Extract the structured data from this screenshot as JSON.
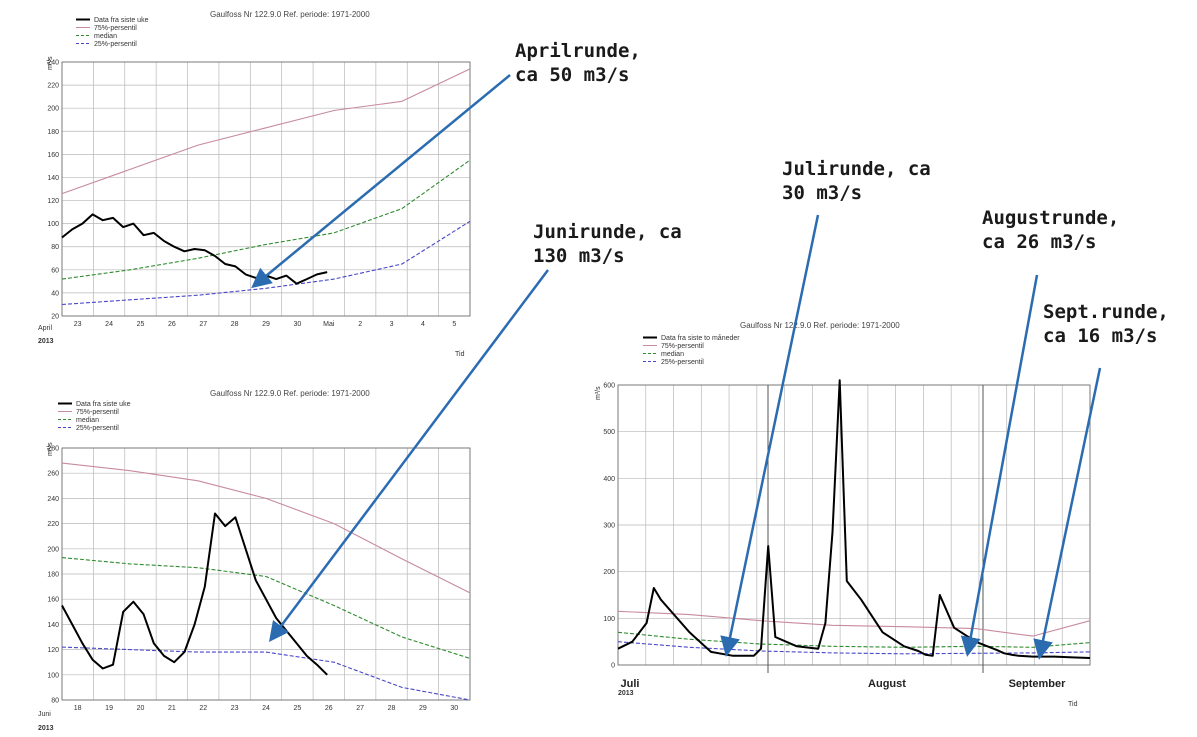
{
  "chart_data": [
    {
      "type": "line",
      "title": "Gaulfoss Nr 122.9.0 Ref. periode: 1971-2000",
      "ylabel": "m³/s",
      "xlabel": "Tid",
      "ylim": [
        20,
        240
      ],
      "yticks": [
        20,
        40,
        60,
        80,
        100,
        120,
        140,
        160,
        180,
        200,
        220,
        240
      ],
      "x_tick_labels": [
        "23",
        "24",
        "25",
        "26",
        "27",
        "28",
        "29",
        "30",
        "Mai",
        "2",
        "3",
        "4",
        "5"
      ],
      "x_period": "April",
      "x_year": "2013",
      "grid": true,
      "legend": "top-left",
      "series": [
        {
          "name": "Data fra siste uke",
          "color": "#000000",
          "x": [
            0,
            0.3,
            0.6,
            0.9,
            1.2,
            1.5,
            1.8,
            2.1,
            2.4,
            2.7,
            3.0,
            3.3,
            3.6,
            3.9,
            4.2,
            4.5,
            4.8,
            5.1,
            5.4,
            5.7,
            6.0,
            6.3,
            6.6,
            6.9,
            7.2,
            7.5,
            7.8
          ],
          "values": [
            88,
            95,
            100,
            108,
            103,
            105,
            97,
            100,
            90,
            92,
            85,
            80,
            76,
            78,
            77,
            72,
            65,
            63,
            56,
            53,
            55,
            52,
            55,
            48,
            52,
            56,
            58
          ]
        },
        {
          "name": "75%-persentil",
          "color": "#c88aa0",
          "x": [
            0,
            2,
            4,
            6,
            8,
            10,
            12
          ],
          "values": [
            126,
            147,
            168,
            183,
            198,
            206,
            234
          ]
        },
        {
          "name": "median",
          "color": "#2e8b2e",
          "x": [
            0,
            2,
            4,
            6,
            8,
            10,
            12
          ],
          "values": [
            52,
            60,
            70,
            82,
            92,
            113,
            155
          ]
        },
        {
          "name": "25%-persentil",
          "color": "#4848c8",
          "x": [
            0,
            2,
            4,
            6,
            8,
            10,
            12
          ],
          "values": [
            30,
            34,
            38,
            44,
            52,
            65,
            102
          ]
        }
      ]
    },
    {
      "type": "line",
      "title": "Gaulfoss Nr 122.9.0 Ref. periode: 1971-2000",
      "ylabel": "m³/s",
      "xlabel": "",
      "ylim": [
        80,
        280
      ],
      "yticks": [
        80,
        100,
        120,
        140,
        160,
        180,
        200,
        220,
        240,
        260,
        280
      ],
      "x_tick_labels": [
        "18",
        "19",
        "20",
        "21",
        "22",
        "23",
        "24",
        "25",
        "26",
        "27",
        "28",
        "29",
        "30"
      ],
      "x_period": "Juni",
      "x_year": "2013",
      "grid": true,
      "legend": "top-left",
      "series": [
        {
          "name": "Data fra siste uke",
          "color": "#000000",
          "x": [
            0,
            0.3,
            0.6,
            0.9,
            1.2,
            1.5,
            1.8,
            2.1,
            2.4,
            2.7,
            3.0,
            3.3,
            3.6,
            3.9,
            4.2,
            4.5,
            4.8,
            5.1,
            5.4,
            5.7,
            6.0,
            6.3,
            6.6,
            6.9,
            7.2,
            7.5,
            7.8
          ],
          "values": [
            155,
            140,
            125,
            112,
            105,
            108,
            150,
            158,
            148,
            125,
            115,
            110,
            118,
            140,
            170,
            228,
            218,
            225,
            200,
            175,
            160,
            145,
            135,
            125,
            115,
            108,
            100
          ]
        },
        {
          "name": "75%-persentil",
          "color": "#c88aa0",
          "x": [
            0,
            2,
            4,
            6,
            8,
            10,
            12
          ],
          "values": [
            268,
            262,
            254,
            240,
            220,
            192,
            165
          ]
        },
        {
          "name": "median",
          "color": "#2e8b2e",
          "x": [
            0,
            2,
            4,
            6,
            8,
            10,
            12
          ],
          "values": [
            193,
            188,
            185,
            178,
            155,
            130,
            113
          ]
        },
        {
          "name": "25%-persentil",
          "color": "#4848c8",
          "x": [
            0,
            2,
            4,
            6,
            8,
            10,
            12
          ],
          "values": [
            122,
            120,
            118,
            118,
            110,
            90,
            80
          ]
        }
      ]
    },
    {
      "type": "line",
      "title": "Gaulfoss Nr 122.9.0 Ref. periode: 1971-2000",
      "ylabel": "m³/s",
      "xlabel": "Tid",
      "ylim": [
        0,
        600
      ],
      "yticks": [
        0,
        100,
        200,
        300,
        400,
        500,
        600
      ],
      "x_tick_labels": [
        "Juli",
        "August",
        "September"
      ],
      "x_year": "2013",
      "grid": true,
      "legend": "top-left",
      "series": [
        {
          "name": "Data fra siste to måneder",
          "color": "#000000",
          "x": [
            0,
            2,
            4,
            5,
            6,
            8,
            10,
            13,
            16,
            19,
            20,
            21,
            22,
            25,
            28,
            29,
            30,
            31,
            32,
            34,
            37,
            40,
            42,
            43,
            44,
            45,
            47,
            50,
            53,
            54,
            55,
            56,
            58,
            61,
            64,
            66
          ],
          "values": [
            35,
            50,
            90,
            165,
            140,
            105,
            70,
            28,
            20,
            20,
            35,
            255,
            60,
            40,
            35,
            90,
            285,
            610,
            180,
            140,
            70,
            40,
            30,
            22,
            20,
            150,
            80,
            50,
            32,
            25,
            22,
            20,
            18,
            18,
            16,
            15
          ]
        },
        {
          "name": "75%-persentil",
          "color": "#c88aa0",
          "x": [
            0,
            10,
            20,
            30,
            40,
            50,
            58,
            66
          ],
          "values": [
            115,
            108,
            95,
            85,
            82,
            78,
            62,
            95
          ]
        },
        {
          "name": "median",
          "color": "#2e8b2e",
          "x": [
            0,
            10,
            20,
            30,
            40,
            50,
            58,
            66
          ],
          "values": [
            70,
            55,
            45,
            40,
            38,
            40,
            38,
            48
          ]
        },
        {
          "name": "25%-persentil",
          "color": "#4848c8",
          "x": [
            0,
            10,
            20,
            30,
            40,
            50,
            58,
            66
          ],
          "values": [
            50,
            38,
            30,
            26,
            24,
            25,
            26,
            28
          ]
        }
      ]
    }
  ],
  "annotations": [
    {
      "lines": [
        "Aprilrunde,",
        "ca 50 m3/s"
      ]
    },
    {
      "lines": [
        "Junirunde, ca",
        "130 m3/s"
      ]
    },
    {
      "lines": [
        "Julirunde, ca",
        "30 m3/s"
      ]
    },
    {
      "lines": [
        "Augustrunde,",
        "ca 26 m3/s"
      ]
    },
    {
      "lines": [
        "Sept.runde,",
        "ca 16 m3/s"
      ]
    }
  ],
  "colors": {
    "arrow": "#2b6cb0",
    "grid": "#b8b8b8"
  }
}
